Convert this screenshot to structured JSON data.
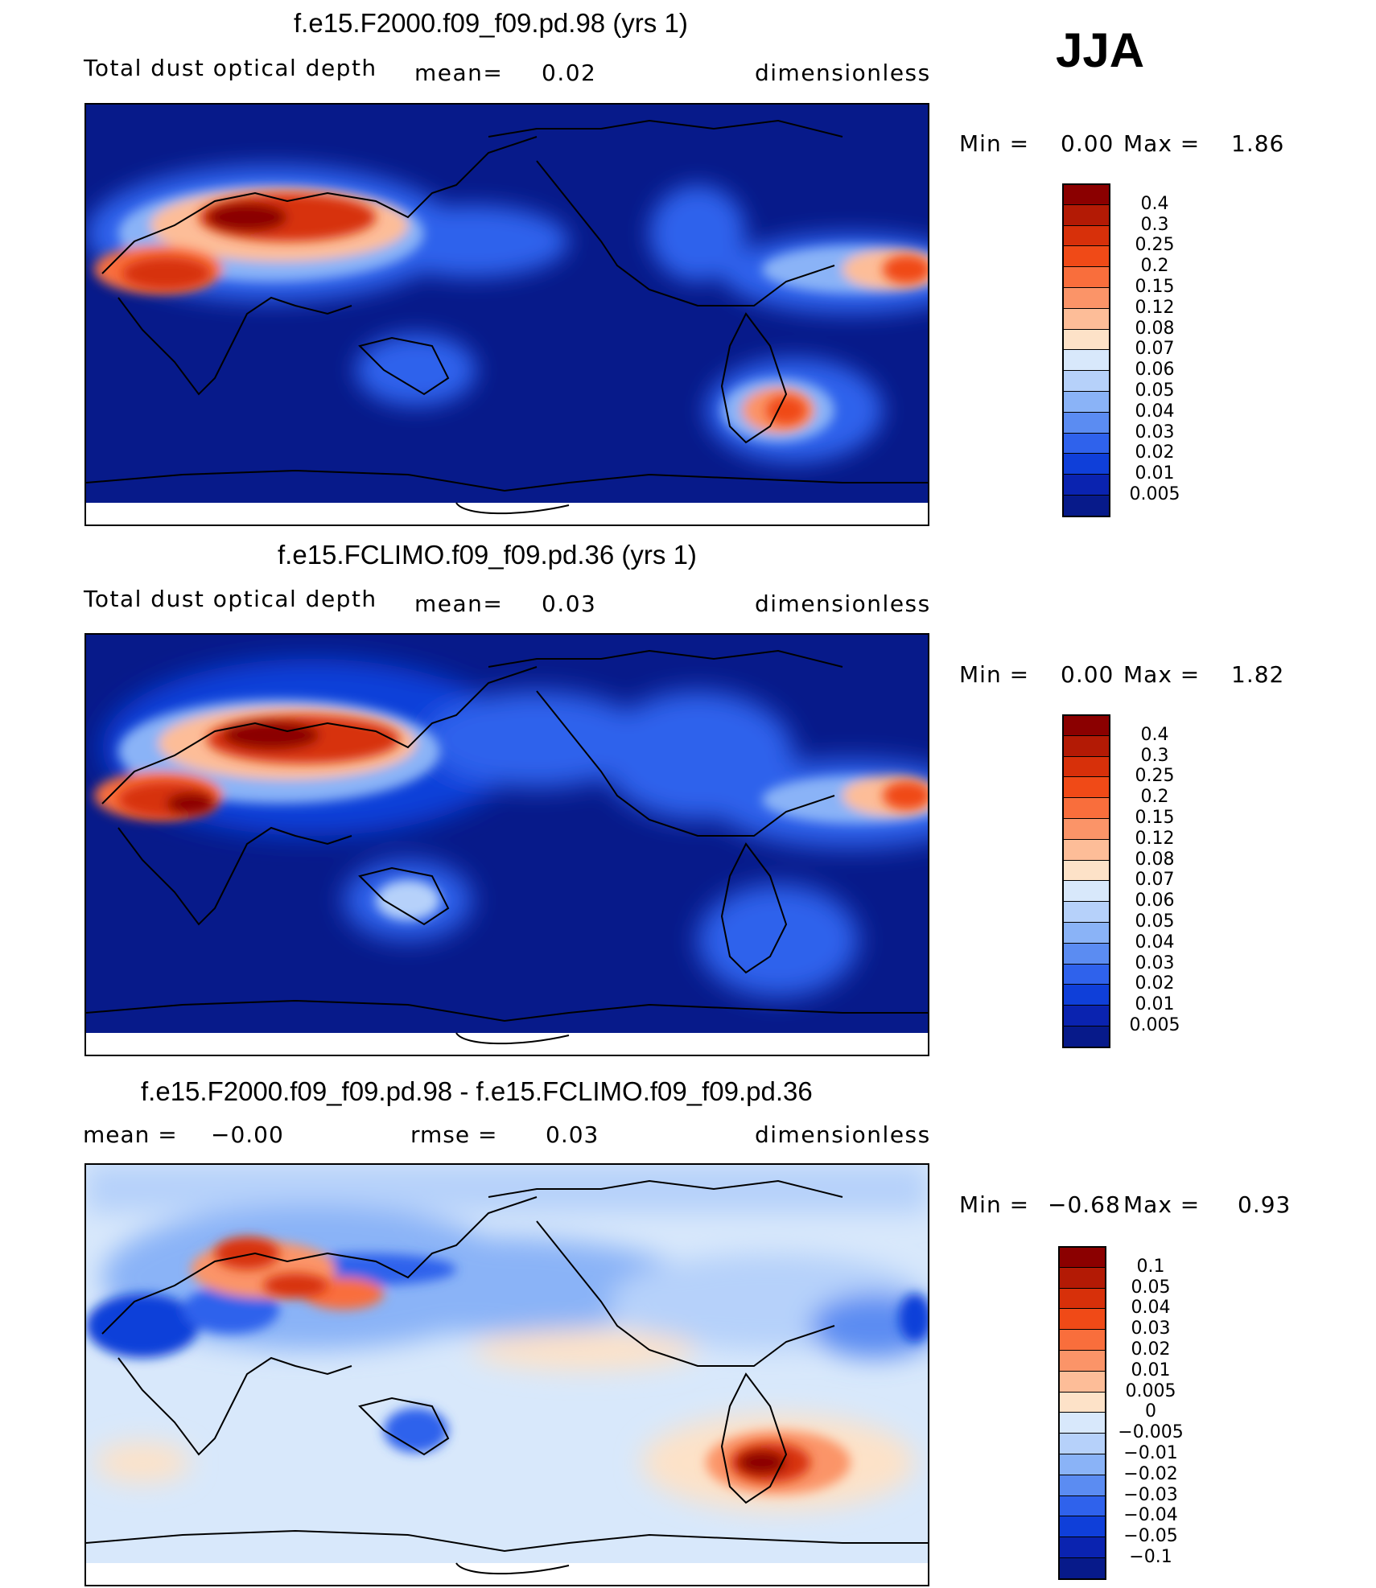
{
  "season": "JJA",
  "panels": [
    {
      "title": "f.e15.F2000.f09_f09.pd.98 (yrs 1)",
      "variable": "Total dust optical depth",
      "mean_label": "mean=",
      "mean_value": "0.02",
      "units": "dimensionless",
      "min_label": "Min =",
      "min_value": "0.00",
      "max_label": "Max =",
      "max_value": "1.86",
      "legend_levels": [
        "0.4",
        "0.3",
        "0.25",
        "0.2",
        "0.15",
        "0.12",
        "0.08",
        "0.07",
        "0.06",
        "0.05",
        "0.04",
        "0.03",
        "0.02",
        "0.01",
        "0.005"
      ],
      "legend_colors": [
        "#8b0000",
        "#b31a05",
        "#d7300a",
        "#f04a17",
        "#f96e3c",
        "#fb9468",
        "#fdbd98",
        "#fde2c8",
        "#d8e8fb",
        "#b6d1fa",
        "#8ab3f7",
        "#5b8cf2",
        "#2f62ec",
        "#0f3fd9",
        "#0a23b0",
        "#071a8a"
      ],
      "map_style": "abs1"
    },
    {
      "title": "f.e15.FCLIMO.f09_f09.pd.36 (yrs 1)",
      "variable": "Total dust optical depth",
      "mean_label": "mean=",
      "mean_value": "0.03",
      "units": "dimensionless",
      "min_label": "Min =",
      "min_value": "0.00",
      "max_label": "Max =",
      "max_value": "1.82",
      "legend_levels": [
        "0.4",
        "0.3",
        "0.25",
        "0.2",
        "0.15",
        "0.12",
        "0.08",
        "0.07",
        "0.06",
        "0.05",
        "0.04",
        "0.03",
        "0.02",
        "0.01",
        "0.005"
      ],
      "legend_colors": [
        "#8b0000",
        "#b31a05",
        "#d7300a",
        "#f04a17",
        "#f96e3c",
        "#fb9468",
        "#fdbd98",
        "#fde2c8",
        "#d8e8fb",
        "#b6d1fa",
        "#8ab3f7",
        "#5b8cf2",
        "#2f62ec",
        "#0f3fd9",
        "#0a23b0",
        "#071a8a"
      ],
      "map_style": "abs2"
    },
    {
      "title": "f.e15.F2000.f09_f09.pd.98 - f.e15.FCLIMO.f09_f09.pd.36",
      "mean_label": "mean =",
      "mean_value": "−0.00",
      "rmse_label": "rmse =",
      "rmse_value": "0.03",
      "units": "dimensionless",
      "min_label": "Min =",
      "min_value": "−0.68",
      "max_label": "Max =",
      "max_value": "0.93",
      "legend_levels": [
        "0.1",
        "0.05",
        "0.04",
        "0.03",
        "0.02",
        "0.01",
        "0.005",
        "0",
        "−0.005",
        "−0.01",
        "−0.02",
        "−0.03",
        "−0.04",
        "−0.05",
        "−0.1"
      ],
      "legend_colors": [
        "#8b0000",
        "#b31a05",
        "#d7300a",
        "#f04a17",
        "#f96e3c",
        "#fb9468",
        "#fdbd98",
        "#fde2c8",
        "#d8e8fb",
        "#b6d1fa",
        "#8ab3f7",
        "#5b8cf2",
        "#2f62ec",
        "#0f3fd9",
        "#0a23b0",
        "#071a8a"
      ],
      "map_style": "diff"
    }
  ]
}
